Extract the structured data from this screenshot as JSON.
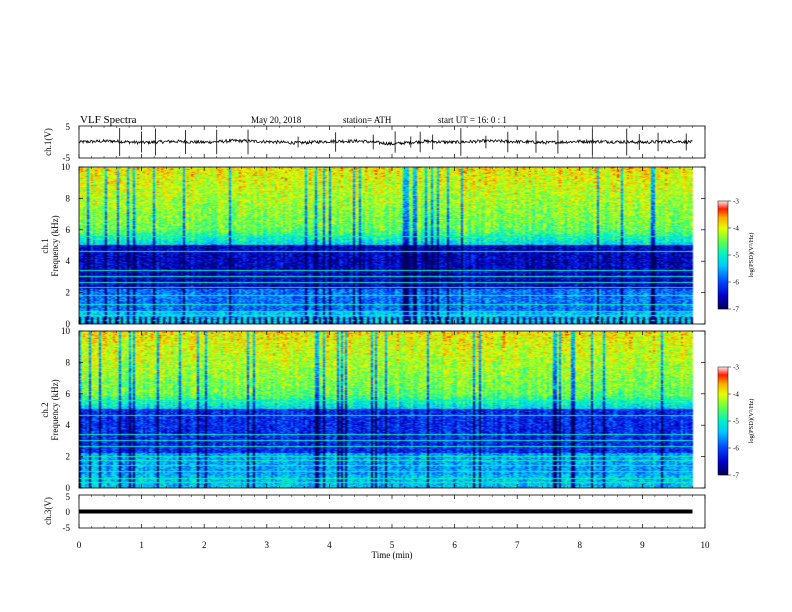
{
  "header": {
    "title": "VLF  Spectra",
    "date": "May 20, 2018",
    "station": "station= ATH",
    "start": "start  UT  =    16: 0   : 1"
  },
  "colors": {
    "low": "#000060",
    "mid_low": "#0030ff",
    "mid": "#00e0c0",
    "mid_high": "#60ff40",
    "high": "#ffe000",
    "top": "#ff2000",
    "trace": "#000000"
  },
  "chart_data": [
    {
      "type": "line",
      "id": "ch1-waveform",
      "ylabel": "ch.1(V)",
      "xlim": [
        0,
        10
      ],
      "ylim": [
        -5,
        5
      ],
      "y_ticks": [
        "5",
        "-5"
      ],
      "series": [
        {
          "x": [
            0,
            0.5,
            1,
            1.5,
            2,
            2.5,
            3,
            3.5,
            4,
            4.5,
            5,
            5.5,
            6,
            6.5,
            7,
            7.5,
            8,
            8.5,
            9,
            9.5,
            9.8
          ],
          "y": [
            0,
            0.3,
            -0.2,
            0.2,
            -0.1,
            0.4,
            0.1,
            -0.3,
            0.2,
            0.3,
            -0.6,
            0.2,
            -0.1,
            0.3,
            0.1,
            -0.2,
            0.2,
            0.1,
            -0.1,
            0.2,
            0
          ]
        }
      ],
      "spikes_x": [
        0.65,
        1.0,
        1.22,
        1.7,
        2.2,
        2.7,
        3.5,
        4.1,
        4.7,
        5.05,
        5.3,
        5.45,
        5.65,
        6.1,
        6.5,
        6.85,
        7.3,
        7.65,
        8.2,
        8.75,
        8.95,
        9.25,
        9.7
      ]
    },
    {
      "type": "heatmap",
      "id": "ch1-spectrogram",
      "ylabel": "ch.1",
      "ylabel2": "Frequency  (kHz)",
      "xlim": [
        0,
        10
      ],
      "ylim": [
        0,
        10
      ],
      "y_ticks": [
        "10",
        "8",
        "6",
        "4",
        "2",
        "0"
      ],
      "colorbar": {
        "label": "log(PSD)(V²/Hz)",
        "range": [
          -7,
          -3
        ],
        "ticks": [
          "-3",
          "-4",
          "-5",
          "-6",
          "-7"
        ]
      },
      "x_data_end": 9.8,
      "horizontal_lines_khz": [
        0.2,
        0.5,
        0.8,
        1.2,
        1.8,
        2.3,
        2.6,
        3.0,
        3.4,
        4.6,
        5.6
      ]
    },
    {
      "type": "heatmap",
      "id": "ch2-spectrogram",
      "ylabel": "ch.2",
      "ylabel2": "Frequency  (kHz)",
      "xlim": [
        0,
        10
      ],
      "ylim": [
        0,
        10
      ],
      "y_ticks": [
        "10",
        "8",
        "6",
        "4",
        "2",
        "0"
      ],
      "colorbar": {
        "label": "log(PSD)(V²/Hz)",
        "range": [
          -7,
          -3
        ],
        "ticks": [
          "-3",
          "-4",
          "-5",
          "-6",
          "-7"
        ]
      },
      "x_data_end": 9.8,
      "horizontal_lines_khz": [
        0.3,
        0.6,
        1.0,
        1.4,
        1.7,
        2.0,
        2.6,
        3.0,
        3.4,
        4.6,
        5.6
      ]
    },
    {
      "type": "line",
      "id": "ch3-waveform",
      "ylabel": "ch.3(V)",
      "xlabel": "Time  (min)",
      "xlim": [
        0,
        10
      ],
      "ylim": [
        -5,
        5
      ],
      "y_ticks": [
        "5",
        "0",
        "-5"
      ],
      "x_ticks": [
        "0",
        "1",
        "2",
        "3",
        "4",
        "5",
        "6",
        "7",
        "8",
        "9",
        "10"
      ],
      "series": [
        {
          "x": [
            0,
            9.8
          ],
          "y": [
            0,
            0
          ]
        }
      ]
    }
  ]
}
